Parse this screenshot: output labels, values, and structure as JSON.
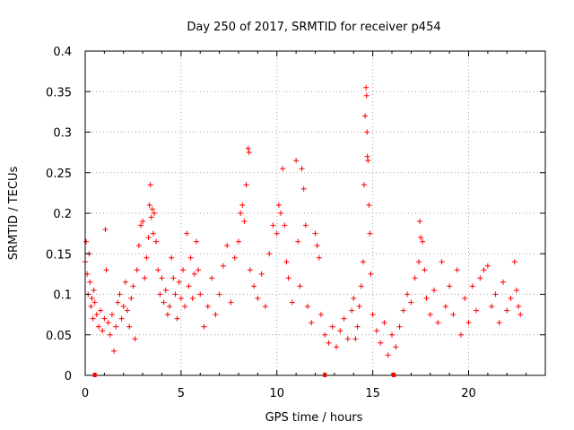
{
  "chart_data": {
    "type": "scatter",
    "title": "Day 250 of 2017, SRMTID for receiver p454",
    "xlabel": "GPS time / hours",
    "ylabel": "SRMTID / TECUs",
    "xlim": [
      0,
      24
    ],
    "ylim": [
      0,
      0.4
    ],
    "grid": true,
    "marker": "+",
    "color": "#ff0000",
    "x_ticks": [
      0,
      5,
      10,
      15,
      20
    ],
    "x_tick_labels": [
      "0",
      "5",
      "10",
      "15",
      "20"
    ],
    "y_ticks": [
      0,
      0.05,
      0.1,
      0.15,
      0.2,
      0.25,
      0.3,
      0.35,
      0.4
    ],
    "y_tick_labels": [
      "0",
      "0.05",
      "0.1",
      "0.15",
      "0.2",
      "0.25",
      "0.3",
      "0.35",
      "0.4"
    ],
    "gap_markers_x": [
      0.5,
      12.5,
      16.1
    ],
    "series": [
      {
        "name": "SRMTID",
        "points": [
          [
            0.0,
            0.14
          ],
          [
            0.05,
            0.165
          ],
          [
            0.1,
            0.125
          ],
          [
            0.15,
            0.1
          ],
          [
            0.2,
            0.15
          ],
          [
            0.25,
            0.115
          ],
          [
            0.3,
            0.085
          ],
          [
            0.35,
            0.095
          ],
          [
            0.4,
            0.07
          ],
          [
            0.45,
            0.105
          ],
          [
            0.5,
            0.09
          ],
          [
            0.6,
            0.075
          ],
          [
            0.7,
            0.06
          ],
          [
            0.8,
            0.08
          ],
          [
            0.9,
            0.055
          ],
          [
            1.0,
            0.07
          ],
          [
            1.05,
            0.18
          ],
          [
            1.1,
            0.13
          ],
          [
            1.2,
            0.065
          ],
          [
            1.3,
            0.05
          ],
          [
            1.4,
            0.075
          ],
          [
            1.5,
            0.03
          ],
          [
            1.6,
            0.06
          ],
          [
            1.7,
            0.09
          ],
          [
            1.8,
            0.1
          ],
          [
            1.9,
            0.07
          ],
          [
            2.0,
            0.085
          ],
          [
            2.1,
            0.115
          ],
          [
            2.2,
            0.08
          ],
          [
            2.3,
            0.06
          ],
          [
            2.4,
            0.095
          ],
          [
            2.5,
            0.11
          ],
          [
            2.6,
            0.045
          ],
          [
            2.7,
            0.13
          ],
          [
            2.8,
            0.16
          ],
          [
            2.9,
            0.185
          ],
          [
            3.0,
            0.19
          ],
          [
            3.1,
            0.12
          ],
          [
            3.2,
            0.145
          ],
          [
            3.3,
            0.17
          ],
          [
            3.35,
            0.21
          ],
          [
            3.4,
            0.235
          ],
          [
            3.45,
            0.195
          ],
          [
            3.5,
            0.205
          ],
          [
            3.55,
            0.175
          ],
          [
            3.6,
            0.2
          ],
          [
            3.7,
            0.165
          ],
          [
            3.8,
            0.13
          ],
          [
            3.9,
            0.1
          ],
          [
            4.0,
            0.12
          ],
          [
            4.1,
            0.09
          ],
          [
            4.2,
            0.105
          ],
          [
            4.3,
            0.075
          ],
          [
            4.4,
            0.085
          ],
          [
            4.5,
            0.145
          ],
          [
            4.6,
            0.12
          ],
          [
            4.7,
            0.1
          ],
          [
            4.8,
            0.07
          ],
          [
            4.9,
            0.115
          ],
          [
            5.0,
            0.095
          ],
          [
            5.1,
            0.13
          ],
          [
            5.2,
            0.085
          ],
          [
            5.3,
            0.175
          ],
          [
            5.4,
            0.11
          ],
          [
            5.5,
            0.145
          ],
          [
            5.6,
            0.095
          ],
          [
            5.7,
            0.125
          ],
          [
            5.8,
            0.165
          ],
          [
            5.9,
            0.13
          ],
          [
            6.0,
            0.1
          ],
          [
            6.2,
            0.06
          ],
          [
            6.4,
            0.085
          ],
          [
            6.6,
            0.12
          ],
          [
            6.8,
            0.075
          ],
          [
            7.0,
            0.1
          ],
          [
            7.2,
            0.135
          ],
          [
            7.4,
            0.16
          ],
          [
            7.6,
            0.09
          ],
          [
            7.8,
            0.145
          ],
          [
            8.0,
            0.165
          ],
          [
            8.1,
            0.2
          ],
          [
            8.2,
            0.21
          ],
          [
            8.3,
            0.19
          ],
          [
            8.4,
            0.235
          ],
          [
            8.5,
            0.28
          ],
          [
            8.55,
            0.275
          ],
          [
            8.6,
            0.13
          ],
          [
            8.8,
            0.11
          ],
          [
            9.0,
            0.095
          ],
          [
            9.2,
            0.125
          ],
          [
            9.4,
            0.085
          ],
          [
            9.6,
            0.15
          ],
          [
            9.8,
            0.185
          ],
          [
            10.0,
            0.175
          ],
          [
            10.1,
            0.21
          ],
          [
            10.2,
            0.2
          ],
          [
            10.3,
            0.255
          ],
          [
            10.4,
            0.185
          ],
          [
            10.5,
            0.14
          ],
          [
            10.6,
            0.12
          ],
          [
            10.8,
            0.09
          ],
          [
            11.0,
            0.265
          ],
          [
            11.1,
            0.165
          ],
          [
            11.2,
            0.11
          ],
          [
            11.3,
            0.255
          ],
          [
            11.4,
            0.23
          ],
          [
            11.5,
            0.185
          ],
          [
            11.6,
            0.085
          ],
          [
            11.8,
            0.065
          ],
          [
            12.0,
            0.175
          ],
          [
            12.1,
            0.16
          ],
          [
            12.2,
            0.145
          ],
          [
            12.3,
            0.075
          ],
          [
            12.5,
            0.05
          ],
          [
            12.7,
            0.04
          ],
          [
            12.9,
            0.06
          ],
          [
            13.1,
            0.035
          ],
          [
            13.3,
            0.055
          ],
          [
            13.5,
            0.07
          ],
          [
            13.7,
            0.045
          ],
          [
            13.9,
            0.08
          ],
          [
            14.0,
            0.095
          ],
          [
            14.1,
            0.045
          ],
          [
            14.2,
            0.06
          ],
          [
            14.3,
            0.085
          ],
          [
            14.4,
            0.11
          ],
          [
            14.5,
            0.14
          ],
          [
            14.55,
            0.235
          ],
          [
            14.6,
            0.32
          ],
          [
            14.65,
            0.355
          ],
          [
            14.68,
            0.345
          ],
          [
            14.7,
            0.3
          ],
          [
            14.72,
            0.27
          ],
          [
            14.75,
            0.265
          ],
          [
            14.8,
            0.21
          ],
          [
            14.85,
            0.175
          ],
          [
            14.9,
            0.125
          ],
          [
            15.0,
            0.075
          ],
          [
            15.2,
            0.055
          ],
          [
            15.4,
            0.04
          ],
          [
            15.6,
            0.065
          ],
          [
            15.8,
            0.025
          ],
          [
            16.0,
            0.05
          ],
          [
            16.2,
            0.035
          ],
          [
            16.4,
            0.06
          ],
          [
            16.6,
            0.08
          ],
          [
            16.8,
            0.1
          ],
          [
            17.0,
            0.09
          ],
          [
            17.2,
            0.12
          ],
          [
            17.4,
            0.14
          ],
          [
            17.45,
            0.19
          ],
          [
            17.5,
            0.17
          ],
          [
            17.6,
            0.165
          ],
          [
            17.7,
            0.13
          ],
          [
            17.8,
            0.095
          ],
          [
            18.0,
            0.075
          ],
          [
            18.2,
            0.105
          ],
          [
            18.4,
            0.065
          ],
          [
            18.6,
            0.14
          ],
          [
            18.8,
            0.085
          ],
          [
            19.0,
            0.11
          ],
          [
            19.2,
            0.075
          ],
          [
            19.4,
            0.13
          ],
          [
            19.6,
            0.05
          ],
          [
            19.8,
            0.095
          ],
          [
            20.0,
            0.065
          ],
          [
            20.2,
            0.11
          ],
          [
            20.4,
            0.08
          ],
          [
            20.6,
            0.12
          ],
          [
            20.8,
            0.13
          ],
          [
            21.0,
            0.135
          ],
          [
            21.2,
            0.085
          ],
          [
            21.4,
            0.1
          ],
          [
            21.6,
            0.065
          ],
          [
            21.8,
            0.115
          ],
          [
            22.0,
            0.08
          ],
          [
            22.2,
            0.095
          ],
          [
            22.4,
            0.14
          ],
          [
            22.5,
            0.105
          ],
          [
            22.6,
            0.085
          ],
          [
            22.7,
            0.075
          ]
        ]
      }
    ]
  }
}
